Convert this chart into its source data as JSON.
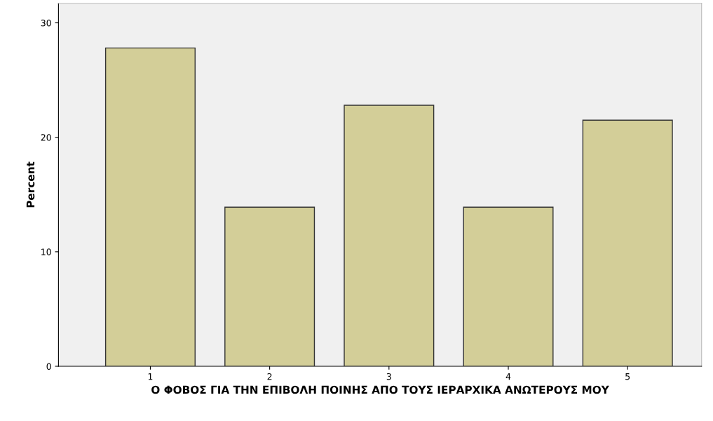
{
  "chart_data": {
    "type": "bar",
    "xlabel": "Ο ΦΟΒΟΣ ΓΙΑ ΤΗΝ ΕΠΙΒΟΛΗ ΠΟΙΝΗΣ ΑΠΟ ΤΟΥΣ ΙΕΡΑΡΧΙΚΑ ΑΝΩΤΕΡΟΥΣ ΜΟΥ",
    "ylabel": "Percent",
    "categories": [
      "1",
      "2",
      "3",
      "4",
      "5"
    ],
    "values": [
      27.8,
      13.9,
      22.8,
      13.9,
      21.5
    ],
    "color": "#d3ce98",
    "ylim": [
      0,
      31.7
    ],
    "yticks": [
      0,
      10,
      20,
      30
    ],
    "grid": false
  }
}
